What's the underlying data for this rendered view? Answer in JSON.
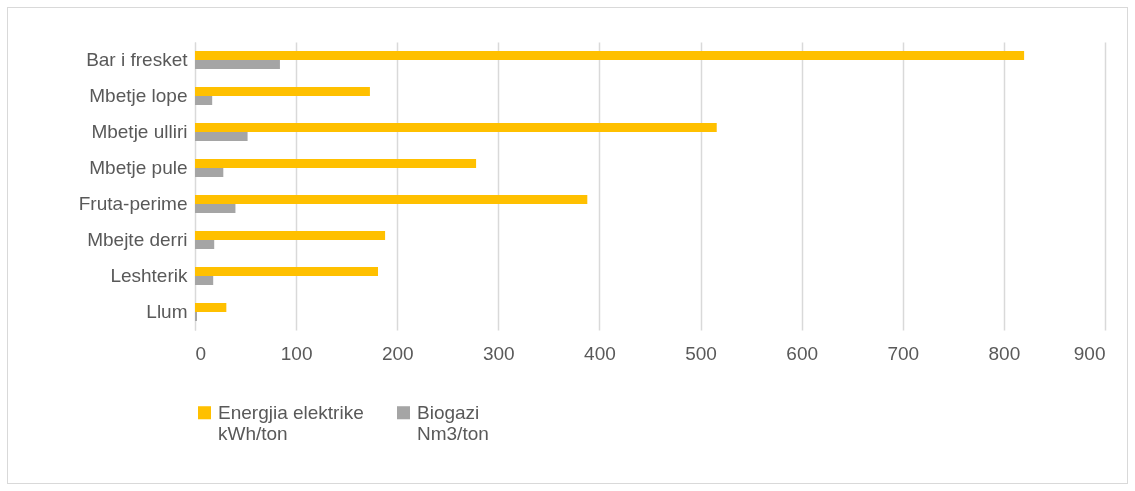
{
  "chart_data": {
    "type": "bar",
    "orientation": "horizontal",
    "categories": [
      "Bar i fresket",
      "Mbetje lope",
      "Mbetje ulliri",
      "Mbetje pule",
      "Fruta-perime",
      "Mbejte derri",
      "Leshterik",
      "Llum"
    ],
    "series": [
      {
        "name": "Energjia elektrike kWh/ton",
        "color": "#ffc000",
        "values": [
          820,
          173,
          516,
          278,
          388,
          188,
          181,
          31
        ]
      },
      {
        "name": "Biogazi Nm3/ton",
        "color": "#a5a5a5",
        "values": [
          84,
          17,
          52,
          28,
          40,
          19,
          18,
          2
        ]
      }
    ],
    "xlim": [
      0,
      900
    ],
    "xticks": [
      0,
      100,
      200,
      300,
      400,
      500,
      600,
      700,
      800,
      900
    ],
    "grid": "x",
    "legend": "bottom"
  }
}
